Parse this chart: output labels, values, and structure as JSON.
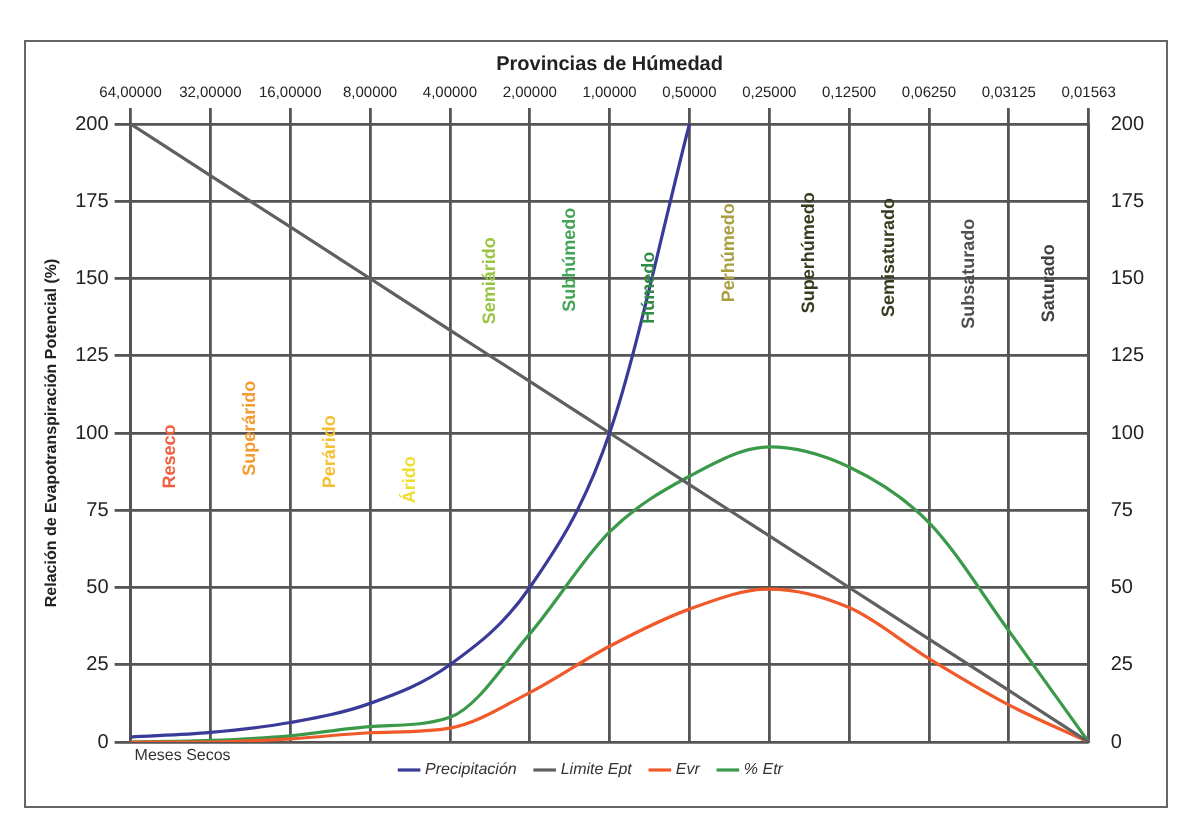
{
  "chart_data": {
    "type": "line",
    "xlabel": "Provincias de Húmedad",
    "ylabel": "Relación de Evapotranspiración Potencial (%)",
    "categories": [
      "64,00000",
      "32,00000",
      "16,00000",
      "8,00000",
      "4,00000",
      "2,00000",
      "1,00000",
      "0,50000",
      "0,25000",
      "0,12500",
      "0,06250",
      "0,03125",
      "0,01563"
    ],
    "series": [
      {
        "name": "Precipitación",
        "color": "#3a3a99",
        "values": [
          1.6,
          3.1,
          6.3,
          12.5,
          25,
          50,
          100,
          200,
          null,
          null,
          null,
          null,
          null
        ]
      },
      {
        "name": "Limite Ept",
        "color": "#606060",
        "values": [
          200,
          183.3,
          166.7,
          150,
          133.3,
          116.7,
          100,
          83.3,
          66.7,
          50,
          33.3,
          16.7,
          0
        ]
      },
      {
        "name": "Evr",
        "color": "#f05a2a",
        "values": [
          0,
          0,
          1,
          3,
          4.5,
          16,
          31,
          43,
          49.5,
          43.5,
          27,
          12,
          0
        ]
      },
      {
        "name": "% Etr",
        "color": "#3a9a4a",
        "values": [
          0,
          0.5,
          2,
          5,
          8,
          35,
          68,
          86,
          95.5,
          89,
          71,
          36,
          0
        ]
      }
    ],
    "ylim": [
      0,
      200
    ],
    "yticks": [
      0,
      25,
      50,
      75,
      100,
      125,
      150,
      175,
      200
    ],
    "y2lim": [
      0,
      200
    ],
    "y2ticks": [
      0,
      25,
      50,
      75,
      100,
      125,
      150,
      175,
      200
    ],
    "grid": true,
    "legend": "bottom",
    "marker": "none",
    "line_style": "solid",
    "annotations": [
      "Reseco",
      "Superárido",
      "Perárido",
      "Árido",
      "Semiárido",
      "Subhúmedo",
      "Húmedo",
      "Perhúmedo",
      "Superhúmedo",
      "Semisaturado",
      "Subsaturado",
      "Saturado",
      "Meses Secos"
    ]
  }
}
